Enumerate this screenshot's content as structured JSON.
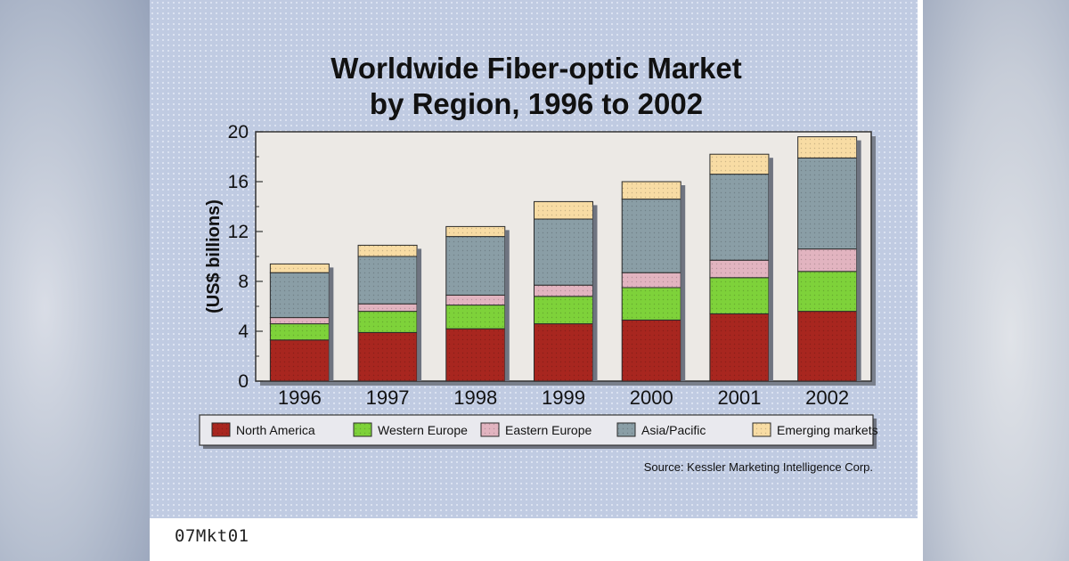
{
  "chart_data": {
    "type": "bar",
    "stacked": true,
    "title": [
      "Worldwide Fiber-optic Market",
      "by Region, 1996 to 2002"
    ],
    "ylabel": "(US$ billions)",
    "xlabel": "",
    "ylim": [
      0,
      20
    ],
    "yticks": [
      "0",
      "4",
      "8",
      "12",
      "16",
      "20"
    ],
    "categories": [
      "1996",
      "1997",
      "1998",
      "1999",
      "2000",
      "2001",
      "2002"
    ],
    "series": [
      {
        "name": "North America",
        "color": "#a8261f",
        "values": [
          3.3,
          3.9,
          4.2,
          4.6,
          4.9,
          5.4,
          5.6
        ]
      },
      {
        "name": "Western Europe",
        "color": "#7ed23a",
        "values": [
          1.3,
          1.7,
          1.9,
          2.2,
          2.6,
          2.9,
          3.2
        ]
      },
      {
        "name": "Eastern Europe",
        "color": "#e2b4c0",
        "values": [
          0.5,
          0.6,
          0.8,
          0.9,
          1.2,
          1.4,
          1.8
        ]
      },
      {
        "name": "Asia/Pacific",
        "color": "#8a9ea6",
        "values": [
          3.6,
          3.8,
          4.7,
          5.3,
          5.9,
          6.9,
          7.3
        ]
      },
      {
        "name": "Emerging markets",
        "color": "#f8dca4",
        "values": [
          0.7,
          0.9,
          0.8,
          1.4,
          1.4,
          1.6,
          1.7
        ]
      }
    ],
    "legend_position": "bottom",
    "grid": false,
    "source": "Source: Kessler Marketing Intelligence Corp."
  },
  "caption": "07Mkt01"
}
